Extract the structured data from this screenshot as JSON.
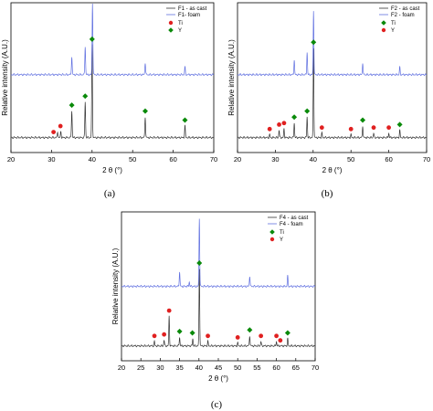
{
  "chart_data": [
    {
      "type": "line",
      "panel": "a",
      "caption": "(a)",
      "xlabel": "2 θ (°)",
      "ylabel": "Relative intensity (A.U.)",
      "xlim": [
        20,
        70
      ],
      "xticks": [
        20,
        30,
        40,
        50,
        60,
        70
      ],
      "yticks": [],
      "grid": false,
      "legend_position": "top-right",
      "series": [
        {
          "name": "F1 - as cast",
          "color": "#333333",
          "baseline": 0.1,
          "peaks": [
            [
              31.5,
              0.04
            ],
            [
              32.3,
              0.04
            ],
            [
              35.0,
              0.18
            ],
            [
              38.3,
              0.24
            ],
            [
              40.0,
              0.62
            ],
            [
              53.1,
              0.14
            ],
            [
              62.9,
              0.08
            ]
          ]
        },
        {
          "name": "F1- foam",
          "color": "#6070e0",
          "baseline": 0.52,
          "peaks": [
            [
              35.0,
              0.12
            ],
            [
              38.3,
              0.19
            ],
            [
              40.1,
              0.48
            ],
            [
              53.1,
              0.08
            ],
            [
              62.9,
              0.05
            ]
          ]
        }
      ],
      "markers": [
        {
          "name": "Ti",
          "shape": "circle",
          "color": "#e02020",
          "x": [
            30.5,
            32.2
          ]
        },
        {
          "name": "Y",
          "shape": "diamond",
          "color": "#0a8a0a",
          "x": [
            35.0,
            38.3,
            40.0,
            53.1,
            62.9
          ]
        }
      ]
    },
    {
      "type": "line",
      "panel": "b",
      "caption": "(b)",
      "xlabel": "2 θ (°)",
      "ylabel": "Relative intensity (A.U.)",
      "xlim": [
        20,
        70
      ],
      "xticks": [
        20,
        30,
        40,
        50,
        60,
        70
      ],
      "yticks": [],
      "grid": false,
      "legend_position": "top-right",
      "series": [
        {
          "name": "F2 - as cast",
          "color": "#333333",
          "baseline": 0.1,
          "peaks": [
            [
              28.5,
              0.02
            ],
            [
              31.0,
              0.05
            ],
            [
              32.3,
              0.06
            ],
            [
              35.0,
              0.1
            ],
            [
              38.4,
              0.14
            ],
            [
              40.1,
              0.6
            ],
            [
              42.3,
              0.03
            ],
            [
              50.0,
              0.02
            ],
            [
              53.1,
              0.08
            ],
            [
              56.0,
              0.03
            ],
            [
              60.0,
              0.03
            ],
            [
              62.9,
              0.05
            ]
          ]
        },
        {
          "name": "F2 - foam",
          "color": "#6070e0",
          "baseline": 0.52,
          "peaks": [
            [
              35.0,
              0.1
            ],
            [
              38.4,
              0.15
            ],
            [
              40.1,
              0.43
            ],
            [
              53.1,
              0.08
            ],
            [
              62.9,
              0.05
            ]
          ]
        }
      ],
      "markers": [
        {
          "name": "Ti",
          "shape": "diamond",
          "color": "#0a8a0a",
          "x": [
            35.0,
            38.4,
            40.1,
            53.1,
            62.9
          ]
        },
        {
          "name": "Y",
          "shape": "circle",
          "color": "#e02020",
          "x": [
            28.5,
            31.0,
            32.3,
            42.3,
            50.0,
            56.0,
            60.0
          ]
        }
      ]
    },
    {
      "type": "line",
      "panel": "c",
      "caption": "(c)",
      "xlabel": "2 θ (°)",
      "ylabel": "Relative intensity (A.U.)",
      "xlim": [
        20,
        70
      ],
      "xticks": [
        20,
        25,
        30,
        35,
        40,
        45,
        50,
        55,
        60,
        65,
        70
      ],
      "yticks": [],
      "grid": false,
      "legend_position": "top-right",
      "series": [
        {
          "name": "F4 - as cast",
          "color": "#333333",
          "baseline": 0.1,
          "peaks": [
            [
              28.5,
              0.03
            ],
            [
              31.0,
              0.04
            ],
            [
              32.3,
              0.2
            ],
            [
              35.0,
              0.06
            ],
            [
              38.4,
              0.05
            ],
            [
              40.1,
              0.52
            ],
            [
              42.3,
              0.03
            ],
            [
              50.0,
              0.02
            ],
            [
              53.1,
              0.07
            ],
            [
              56.0,
              0.03
            ],
            [
              60.0,
              0.03
            ],
            [
              62.9,
              0.05
            ]
          ]
        },
        {
          "name": "F4 - foam",
          "color": "#6070e0",
          "baseline": 0.5,
          "peaks": [
            [
              35.0,
              0.1
            ],
            [
              37.5,
              0.03
            ],
            [
              40.1,
              0.46
            ],
            [
              53.1,
              0.07
            ],
            [
              62.9,
              0.07
            ]
          ]
        }
      ],
      "markers": [
        {
          "name": "Ti",
          "shape": "diamond",
          "color": "#0a8a0a",
          "x": [
            35.0,
            38.3,
            40.1,
            53.1,
            62.9
          ]
        },
        {
          "name": "Y",
          "shape": "circle",
          "color": "#e02020",
          "x": [
            28.5,
            31.0,
            32.3,
            42.3,
            50.0,
            56.0,
            60.0,
            61.0
          ]
        }
      ]
    }
  ]
}
